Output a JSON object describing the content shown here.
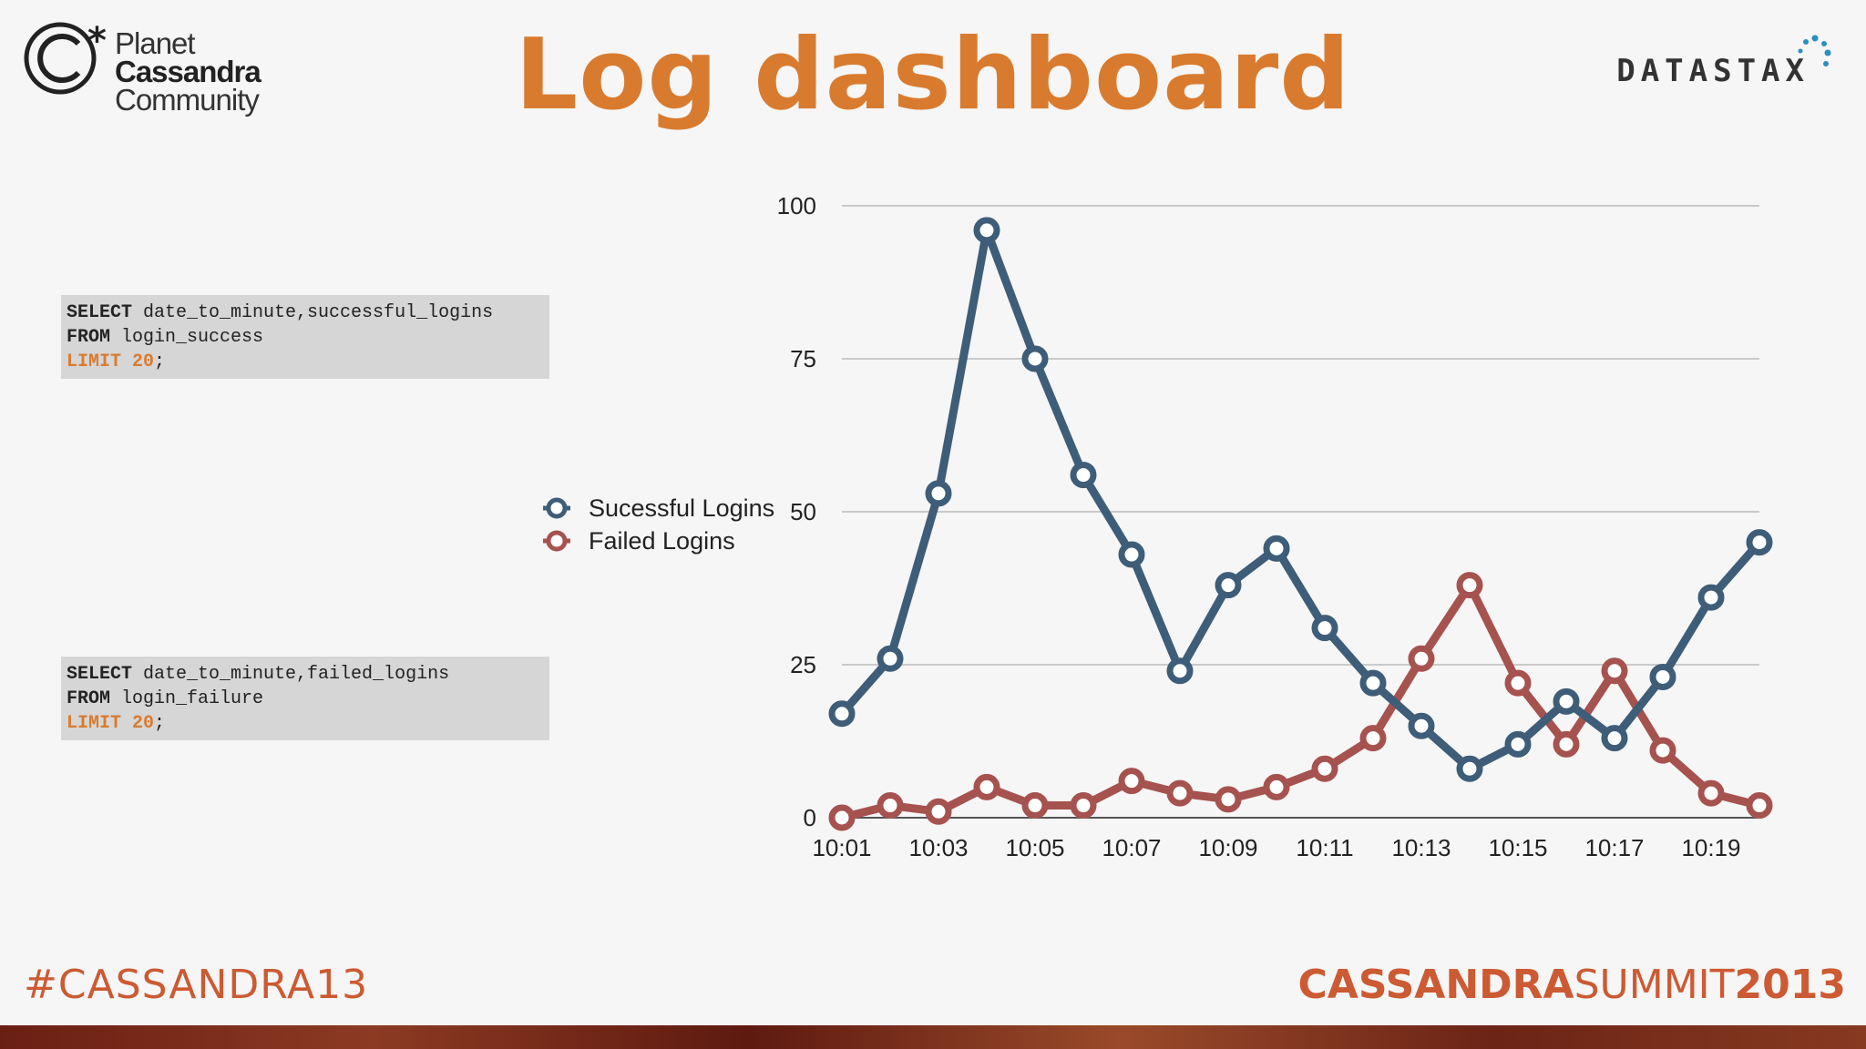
{
  "header": {
    "logo_left": {
      "line1": "Planet",
      "line2": "Cassandra",
      "line3": "Community"
    },
    "title": "Log dashboard",
    "logo_right": "DATASTAX"
  },
  "queries": [
    {
      "select_kw": "SELECT",
      "select_rest": " date_to_minute,successful_logins",
      "from_kw": "FROM",
      "from_rest": " login_success",
      "limit": "LIMIT 20",
      "end": ";"
    },
    {
      "select_kw": "SELECT",
      "select_rest": " date_to_minute,failed_logins",
      "from_kw": "FROM",
      "from_rest": " login_failure",
      "limit": "LIMIT 20",
      "end": ";"
    }
  ],
  "chart_data": {
    "type": "line",
    "title": "",
    "xlabel": "",
    "ylabel": "",
    "ylim": [
      0,
      100
    ],
    "yticks": [
      0,
      25,
      50,
      75,
      100
    ],
    "x": [
      "10:01",
      "10:02",
      "10:03",
      "10:04",
      "10:05",
      "10:06",
      "10:07",
      "10:08",
      "10:09",
      "10:10",
      "10:11",
      "10:12",
      "10:13",
      "10:14",
      "10:15",
      "10:16",
      "10:17",
      "10:18",
      "10:19",
      "10:20"
    ],
    "xtick_labels": [
      "10:01",
      "10:03",
      "10:05",
      "10:07",
      "10:09",
      "10:11",
      "10:13",
      "10:15",
      "10:17",
      "10:19"
    ],
    "grid": true,
    "legend_position": "left",
    "series": [
      {
        "name": "Sucessful Logins",
        "color": "#3e5d78",
        "values": [
          17,
          26,
          53,
          96,
          75,
          56,
          43,
          24,
          38,
          44,
          31,
          22,
          15,
          8,
          12,
          19,
          13,
          23,
          36,
          45
        ]
      },
      {
        "name": "Failed Logins",
        "color": "#a6524f",
        "values": [
          0,
          2,
          1,
          5,
          2,
          2,
          6,
          4,
          3,
          5,
          8,
          13,
          26,
          38,
          22,
          12,
          24,
          11,
          4,
          2
        ]
      }
    ]
  },
  "footer": {
    "hashtag": "#CASSANDRA13",
    "brand_bold": "CASSANDRA",
    "brand_mid": "SUMMIT",
    "brand_year": "2013",
    "accent_color": "#cc5a32"
  }
}
